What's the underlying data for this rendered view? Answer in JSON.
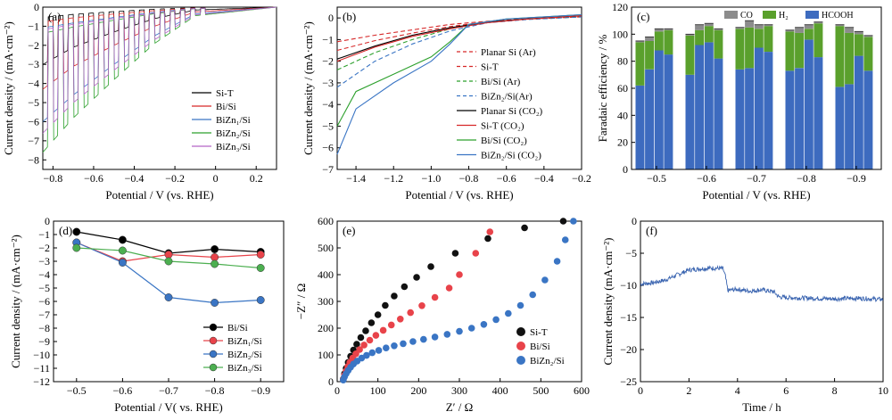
{
  "chart_data": [
    {
      "id": "a",
      "type": "line",
      "panel_label": "(a)",
      "xlabel": "Potential / V (vs. RHE)",
      "ylabel": "Current density / (mA·cm⁻²)",
      "xlim": [
        -0.85,
        0.3
      ],
      "ylim": [
        -8.5,
        0
      ],
      "xticks": [
        -0.8,
        -0.6,
        -0.4,
        -0.2,
        0.0,
        0.2
      ],
      "xticklabels": [
        "−0.8",
        "−0.6",
        "−0.4",
        "−0.2",
        "0",
        "0.2"
      ],
      "yticks": [
        0,
        -1,
        -2,
        -3,
        -4,
        -5,
        -6,
        -7,
        -8
      ],
      "yticklabels": [
        "0",
        "−1",
        "−2",
        "−3",
        "−4",
        "−5",
        "−6",
        "−7",
        "−8"
      ],
      "legend": "right",
      "series": [
        {
          "name": "Si-T",
          "color": "#000000",
          "x": [
            -0.85,
            -0.7,
            -0.5,
            -0.3,
            -0.1,
            0.3
          ],
          "y": [
            -3.0,
            -2.1,
            -1.3,
            -0.6,
            -0.15,
            0.0
          ]
        },
        {
          "name": "Bi/Si",
          "color": "#d62728",
          "x": [
            -0.85,
            -0.7,
            -0.5,
            -0.3,
            -0.1,
            0.3
          ],
          "y": [
            -4.3,
            -3.1,
            -2.0,
            -1.0,
            -0.25,
            0.0
          ]
        },
        {
          "name": "BiZn₁/Si",
          "color": "#3a75c4",
          "x": [
            -0.85,
            -0.7,
            -0.5,
            -0.3,
            -0.1,
            0.3
          ],
          "y": [
            -6.0,
            -4.6,
            -3.0,
            -1.5,
            -0.35,
            0.0
          ]
        },
        {
          "name": "BiZn₂/Si",
          "color": "#2ca02c",
          "x": [
            -0.85,
            -0.7,
            -0.5,
            -0.3,
            -0.1,
            0.3
          ],
          "y": [
            -7.6,
            -5.8,
            -3.8,
            -1.9,
            -0.45,
            0.0
          ]
        },
        {
          "name": "BiZn₃/Si",
          "color": "#b565c8",
          "x": [
            -0.85,
            -0.7,
            -0.5,
            -0.3,
            -0.1,
            0.3
          ],
          "y": [
            -6.6,
            -5.0,
            -3.3,
            -1.7,
            -0.4,
            0.0
          ]
        }
      ]
    },
    {
      "id": "b",
      "type": "line",
      "panel_label": "(b)",
      "xlabel": "Potential / V (vs. RHE)",
      "ylabel": "Current density / (mA·cm⁻²)",
      "xlim": [
        -1.5,
        -0.2
      ],
      "ylim": [
        -7,
        0.5
      ],
      "xticks": [
        -1.4,
        -1.2,
        -1.0,
        -0.8,
        -0.6,
        -0.4,
        -0.2
      ],
      "xticklabels": [
        "−1.4",
        "−1.2",
        "−1.0",
        "−0.8",
        "−0.6",
        "−0.4",
        "−0.2"
      ],
      "yticks": [
        0,
        -1,
        -2,
        -3,
        -4,
        -5,
        -6,
        -7
      ],
      "yticklabels": [
        "0",
        "−1",
        "−2",
        "−3",
        "−4",
        "−5",
        "−6",
        "−7"
      ],
      "legend": "right",
      "series": [
        {
          "name": "Planar Si (Ar)",
          "color": "#d62728",
          "dash": true,
          "x": [
            -1.5,
            -1.3,
            -1.1,
            -0.9,
            -0.7,
            -0.5,
            -0.2
          ],
          "y": [
            -1.1,
            -0.8,
            -0.55,
            -0.3,
            -0.15,
            -0.05,
            0.05
          ]
        },
        {
          "name": "Si-T",
          "color": "#d62728",
          "dash": true,
          "x": [
            -1.5,
            -1.3,
            -1.1,
            -0.9,
            -0.7,
            -0.5,
            -0.2
          ],
          "y": [
            -1.5,
            -1.05,
            -0.7,
            -0.4,
            -0.18,
            -0.06,
            0.05
          ]
        },
        {
          "name": "Bi/Si (Ar)",
          "color": "#2ca02c",
          "dash": true,
          "x": [
            -1.5,
            -1.3,
            -1.1,
            -0.9,
            -0.7,
            -0.5,
            -0.2
          ],
          "y": [
            -2.4,
            -1.6,
            -1.0,
            -0.5,
            -0.2,
            -0.07,
            0.05
          ]
        },
        {
          "name": "BiZn₂/Si(Ar)",
          "color": "#3a75c4",
          "dash": true,
          "x": [
            -1.5,
            -1.3,
            -1.1,
            -0.9,
            -0.7,
            -0.5,
            -0.2
          ],
          "y": [
            -3.2,
            -2.0,
            -1.2,
            -0.6,
            -0.22,
            -0.08,
            0.05
          ]
        },
        {
          "name": "Planar Si (CO₂)",
          "color": "#000000",
          "x": [
            -1.5,
            -1.3,
            -1.1,
            -0.9,
            -0.7,
            -0.5,
            -0.2
          ],
          "y": [
            -1.9,
            -1.3,
            -0.8,
            -0.45,
            -0.2,
            -0.05,
            0.1
          ]
        },
        {
          "name": "Si-T (CO₂)",
          "color": "#d62728",
          "x": [
            -1.5,
            -1.3,
            -1.1,
            -0.9,
            -0.7,
            -0.5,
            -0.2
          ],
          "y": [
            -2.0,
            -1.35,
            -0.85,
            -0.5,
            -0.22,
            -0.06,
            0.1
          ]
        },
        {
          "name": "Bi/Si (CO₂)",
          "color": "#2ca02c",
          "x": [
            -1.5,
            -1.4,
            -1.2,
            -1.0,
            -0.9,
            -0.8,
            -0.6,
            -0.4,
            -0.2
          ],
          "y": [
            -5.0,
            -3.4,
            -2.6,
            -1.8,
            -1.1,
            -0.3,
            -0.05,
            0.05,
            0.15
          ]
        },
        {
          "name": "BiZn₂/Si (CO₂)",
          "color": "#3a75c4",
          "x": [
            -1.5,
            -1.4,
            -1.2,
            -1.0,
            -0.9,
            -0.8,
            -0.6,
            -0.4,
            -0.2
          ],
          "y": [
            -6.3,
            -4.2,
            -3.0,
            -2.0,
            -1.2,
            -0.3,
            -0.05,
            0.05,
            0.15
          ]
        }
      ]
    },
    {
      "id": "c",
      "type": "bar",
      "panel_label": "(c)",
      "xlabel": "Potential / V (vs. RHE)",
      "ylabel": "Faradaic efficiency / %",
      "ylim": [
        0,
        120
      ],
      "yticks": [
        0,
        20,
        40,
        60,
        80,
        100,
        120
      ],
      "yticklabels": [
        "0",
        "20",
        "40",
        "60",
        "80",
        "100",
        "120"
      ],
      "categories": [
        "−0.5",
        "−0.6",
        "−0.7",
        "−0.8",
        "−0.9"
      ],
      "legend": "top",
      "stack_names": [
        "CO",
        "H₂",
        "HCOOH"
      ],
      "stack_colors": {
        "CO": "#8c8c8c",
        "H₂": "#5aa02c",
        "HCOOH": "#3d6bbf"
      },
      "groups": [
        {
          "category": "−0.5",
          "bars": [
            {
              "HCOOH": 62,
              "H₂": 32,
              "CO": 1
            },
            {
              "HCOOH": 74,
              "H₂": 21,
              "CO": 3
            },
            {
              "HCOOH": 88,
              "H₂": 14,
              "CO": 2
            },
            {
              "HCOOH": 85,
              "H₂": 18,
              "CO": 1
            }
          ]
        },
        {
          "category": "−0.6",
          "bars": [
            {
              "HCOOH": 70,
              "H₂": 29,
              "CO": 1
            },
            {
              "HCOOH": 92,
              "H₂": 11,
              "CO": 4
            },
            {
              "HCOOH": 94,
              "H₂": 12,
              "CO": 2
            },
            {
              "HCOOH": 82,
              "H₂": 21,
              "CO": 1
            }
          ]
        },
        {
          "category": "−0.7",
          "bars": [
            {
              "HCOOH": 74,
              "H₂": 30,
              "CO": 1
            },
            {
              "HCOOH": 75,
              "H₂": 30,
              "CO": 5
            },
            {
              "HCOOH": 90,
              "H₂": 14,
              "CO": 3
            },
            {
              "HCOOH": 87,
              "H₂": 19,
              "CO": 1
            }
          ]
        },
        {
          "category": "−0.8",
          "bars": [
            {
              "HCOOH": 73,
              "H₂": 29,
              "CO": 1
            },
            {
              "HCOOH": 75,
              "H₂": 26,
              "CO": 4
            },
            {
              "HCOOH": 96,
              "H₂": 8,
              "CO": 3
            },
            {
              "HCOOH": 83,
              "H₂": 25,
              "CO": 1
            }
          ]
        },
        {
          "category": "−0.9",
          "bars": [
            {
              "HCOOH": 61,
              "H₂": 45,
              "CO": 1
            },
            {
              "HCOOH": 63,
              "H₂": 38,
              "CO": 4
            },
            {
              "HCOOH": 84,
              "H₂": 16,
              "CO": 2
            },
            {
              "HCOOH": 73,
              "H₂": 25,
              "CO": 1
            }
          ]
        }
      ]
    },
    {
      "id": "d",
      "type": "line",
      "panel_label": "(d)",
      "xlabel": "Potential / V( vs. RHE)",
      "ylabel": "Current density / (mA·cm⁻²)",
      "xlim": [
        -0.95,
        -0.45
      ],
      "ylim": [
        -12,
        0
      ],
      "xticks": [
        -0.5,
        -0.6,
        -0.7,
        -0.8,
        -0.9
      ],
      "xticklabels": [
        "−0.5",
        "−0.6",
        "−0.7",
        "−0.8",
        "−0.9"
      ],
      "yticks": [
        0,
        -1,
        -2,
        -3,
        -4,
        -5,
        -6,
        -7,
        -8,
        -9,
        -10,
        -11,
        -12
      ],
      "yticklabels": [
        "0",
        "−1",
        "−2",
        "−3",
        "−4",
        "−5",
        "−6",
        "−7",
        "−8",
        "−9",
        "−10",
        "−11",
        "−12"
      ],
      "legend": "bottom-right",
      "series": [
        {
          "name": "Bi/Si",
          "color": "#000000",
          "x": [
            -0.5,
            -0.6,
            -0.7,
            -0.8,
            -0.9
          ],
          "y": [
            -0.8,
            -1.4,
            -2.4,
            -2.1,
            -2.3
          ]
        },
        {
          "name": "BiZn₁/Si",
          "color": "#e8434a",
          "x": [
            -0.5,
            -0.6,
            -0.7,
            -0.8,
            -0.9
          ],
          "y": [
            -1.6,
            -3.0,
            -2.5,
            -2.7,
            -2.5
          ]
        },
        {
          "name": "BiZn₂/Si",
          "color": "#3a75c4",
          "x": [
            -0.5,
            -0.6,
            -0.7,
            -0.8,
            -0.9
          ],
          "y": [
            -1.6,
            -3.1,
            -5.7,
            -6.1,
            -5.9
          ]
        },
        {
          "name": "BiZn₃/Si",
          "color": "#4caf50",
          "x": [
            -0.5,
            -0.6,
            -0.7,
            -0.8,
            -0.9
          ],
          "y": [
            -2.0,
            -2.2,
            -3.0,
            -3.2,
            -3.5
          ]
        }
      ]
    },
    {
      "id": "e",
      "type": "scatter",
      "panel_label": "(e)",
      "xlabel": "Z′ / Ω",
      "ylabel": "−Z″ / Ω",
      "xlim": [
        0,
        600
      ],
      "ylim": [
        0,
        600
      ],
      "xticks": [
        0,
        100,
        200,
        300,
        400,
        500,
        600
      ],
      "xticklabels": [
        "0",
        "100",
        "200",
        "300",
        "400",
        "500",
        "600"
      ],
      "yticks": [
        0,
        100,
        200,
        300,
        400,
        500,
        600
      ],
      "yticklabels": [
        "0",
        "100",
        "200",
        "300",
        "400",
        "500",
        "600"
      ],
      "legend": "bottom-right",
      "series": [
        {
          "name": "Si-T",
          "color": "#111111",
          "x": [
            15,
            18,
            22,
            27,
            33,
            40,
            48,
            58,
            70,
            84,
            100,
            118,
            140,
            165,
            195,
            230,
            290,
            370,
            460,
            555
          ],
          "y": [
            10,
            30,
            50,
            72,
            95,
            118,
            140,
            165,
            190,
            220,
            250,
            285,
            320,
            355,
            390,
            430,
            480,
            535,
            575,
            600
          ]
        },
        {
          "name": "Bi/Si",
          "color": "#e8434a",
          "x": [
            15,
            18,
            22,
            26,
            31,
            38,
            46,
            55,
            66,
            80,
            95,
            113,
            133,
            155,
            180,
            208,
            240,
            275,
            300,
            340,
            375
          ],
          "y": [
            8,
            24,
            40,
            56,
            72,
            88,
            104,
            120,
            137,
            155,
            173,
            192,
            212,
            234,
            258,
            284,
            315,
            350,
            400,
            480,
            560
          ]
        },
        {
          "name": "BiZn₂/Si",
          "color": "#3a75c4",
          "x": [
            15,
            18,
            22,
            27,
            33,
            40,
            49,
            60,
            72,
            86,
            102,
            120,
            140,
            162,
            186,
            212,
            240,
            270,
            300,
            330,
            360,
            390,
            420,
            450,
            480,
            510,
            540,
            560,
            580
          ],
          "y": [
            6,
            18,
            30,
            42,
            54,
            66,
            77,
            88,
            98,
            108,
            117,
            126,
            134,
            142,
            150,
            158,
            167,
            177,
            188,
            200,
            214,
            232,
            255,
            285,
            325,
            380,
            450,
            530,
            600
          ]
        }
      ]
    },
    {
      "id": "f",
      "type": "line",
      "panel_label": "(f)",
      "xlabel": "Time / h",
      "ylabel": "Current density (mA·cm⁻²)",
      "xlim": [
        0,
        10
      ],
      "ylim": [
        -25,
        0
      ],
      "xticks": [
        0,
        2,
        4,
        6,
        8,
        10
      ],
      "xticklabels": [
        "0",
        "2",
        "4",
        "6",
        "8",
        "10"
      ],
      "yticks": [
        0,
        -5,
        -10,
        -15,
        -20,
        -25
      ],
      "yticklabels": [
        "0",
        "−5",
        "−10",
        "−15",
        "−20",
        "−25"
      ],
      "series": [
        {
          "color": "#3a64b0",
          "x": [
            0,
            0.5,
            1.0,
            1.5,
            2.0,
            2.5,
            3.0,
            3.4,
            3.5,
            3.6,
            4.0,
            4.5,
            5.0,
            5.5,
            5.7,
            6.0,
            7.0,
            8.0,
            9.0,
            10.0
          ],
          "y": [
            -9.8,
            -9.6,
            -9.2,
            -8.4,
            -7.6,
            -7.4,
            -7.3,
            -7.4,
            -8.6,
            -10.8,
            -10.6,
            -10.9,
            -10.7,
            -11.0,
            -11.8,
            -11.9,
            -12.0,
            -12.1,
            -12.0,
            -12.2
          ]
        }
      ]
    }
  ]
}
